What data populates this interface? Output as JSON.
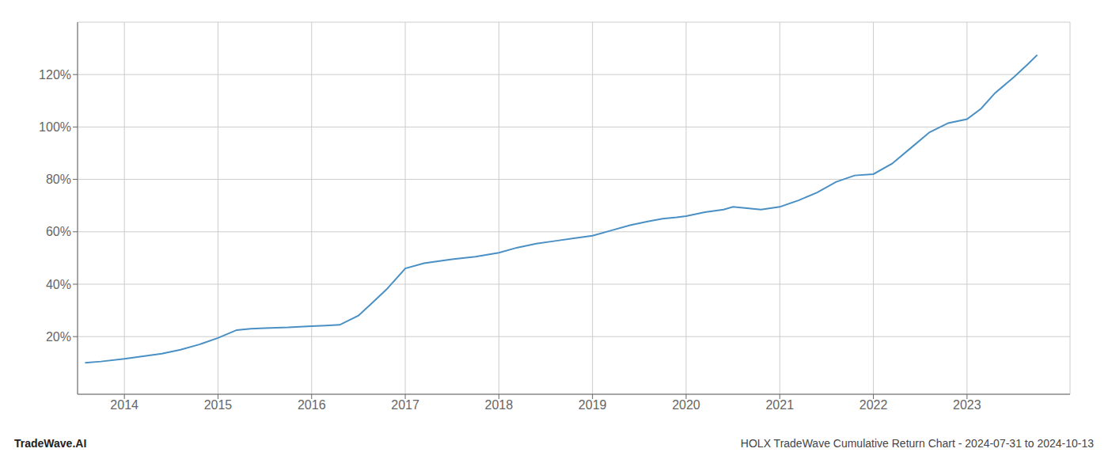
{
  "chart_data": {
    "type": "line",
    "x": [
      2013.58,
      2013.75,
      2014.0,
      2014.2,
      2014.4,
      2014.6,
      2014.8,
      2015.0,
      2015.1,
      2015.2,
      2015.35,
      2015.5,
      2015.75,
      2016.0,
      2016.15,
      2016.3,
      2016.5,
      2016.65,
      2016.8,
      2017.0,
      2017.2,
      2017.5,
      2017.75,
      2018.0,
      2018.2,
      2018.4,
      2018.6,
      2018.8,
      2019.0,
      2019.2,
      2019.4,
      2019.6,
      2019.75,
      2019.9,
      2020.0,
      2020.2,
      2020.4,
      2020.5,
      2020.65,
      2020.8,
      2021.0,
      2021.2,
      2021.4,
      2021.6,
      2021.8,
      2022.0,
      2022.2,
      2022.4,
      2022.6,
      2022.8,
      2023.0,
      2023.15,
      2023.3,
      2023.5,
      2023.65,
      2023.75
    ],
    "values": [
      10.0,
      10.5,
      11.5,
      12.5,
      13.5,
      15.0,
      17.0,
      19.5,
      21.0,
      22.5,
      23.0,
      23.2,
      23.5,
      24.0,
      24.2,
      24.5,
      28.0,
      33.0,
      38.0,
      46.0,
      48.0,
      49.5,
      50.5,
      52.0,
      54.0,
      55.5,
      56.5,
      57.5,
      58.5,
      60.5,
      62.5,
      64.0,
      65.0,
      65.5,
      66.0,
      67.5,
      68.5,
      69.5,
      69.0,
      68.5,
      69.5,
      72.0,
      75.0,
      79.0,
      81.5,
      82.0,
      86.0,
      92.0,
      98.0,
      101.5,
      103.0,
      107.0,
      113.0,
      119.0,
      124.0,
      127.5
    ],
    "color": "#4a90c4",
    "xlim": [
      2013.5,
      2024.1
    ],
    "xticks": [
      2014,
      2015,
      2016,
      2017,
      2018,
      2019,
      2020,
      2021,
      2022,
      2023
    ],
    "ylim": [
      -2,
      140
    ],
    "yticks": [
      {
        "value": 20,
        "label": "20%"
      },
      {
        "value": 40,
        "label": "40%"
      },
      {
        "value": 60,
        "label": "60%"
      },
      {
        "value": 80,
        "label": "80%"
      },
      {
        "value": 100,
        "label": "100%"
      },
      {
        "value": 120,
        "label": "120%"
      }
    ],
    "grid": true,
    "annotations": [
      "TradeWave.AI",
      "HOLX TradeWave Cumulative Return Chart - 2024-07-31 to 2024-10-13"
    ]
  }
}
